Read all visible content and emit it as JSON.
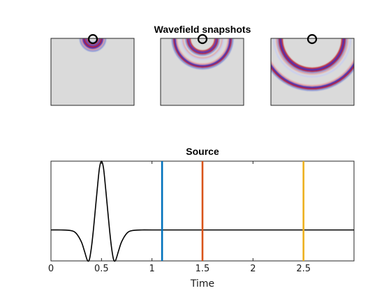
{
  "figure": {
    "top_title": "Wavefield snapshots"
  },
  "chart_data": [
    {
      "type": "heatmap",
      "title": "Wavefield snapshots",
      "panels": [
        {
          "time": 1.1,
          "source_marker": "circle",
          "color_low": "#2a35b8",
          "color_mid": "#dadada",
          "color_high": "#b3121a"
        },
        {
          "time": 1.5,
          "source_marker": "circle",
          "color_low": "#2a35b8",
          "color_mid": "#dadada",
          "color_high": "#b3121a"
        },
        {
          "time": 2.5,
          "source_marker": "circle",
          "color_low": "#2a35b8",
          "color_mid": "#dadada",
          "color_high": "#b3121a"
        }
      ]
    },
    {
      "type": "line",
      "title": "Source",
      "xlabel": "Time",
      "ylabel": "",
      "xlim": [
        0,
        3
      ],
      "ylim": [
        -0.45,
        1.0
      ],
      "xticks": [
        0,
        0.5,
        1,
        1.5,
        2,
        2.5
      ],
      "xtick_labels": [
        "0",
        "0.5",
        "1",
        "1.5",
        "2",
        "2.5"
      ],
      "series": [
        {
          "line_color": "#000000",
          "x": [
            0,
            0.1,
            0.2,
            0.25,
            0.3,
            0.33,
            0.36,
            0.38,
            0.4,
            0.42,
            0.44,
            0.46,
            0.48,
            0.5,
            0.52,
            0.54,
            0.56,
            0.58,
            0.6,
            0.62,
            0.64,
            0.67,
            0.7,
            0.75,
            0.8,
            0.9,
            1.0,
            1.5,
            2.0,
            2.5,
            3.0
          ],
          "y": [
            0,
            0,
            -0.01,
            -0.05,
            -0.17,
            -0.3,
            -0.44,
            -0.43,
            -0.26,
            0.0,
            0.31,
            0.62,
            0.9,
            1.0,
            0.9,
            0.62,
            0.31,
            0.0,
            -0.26,
            -0.43,
            -0.44,
            -0.3,
            -0.17,
            -0.05,
            -0.01,
            0,
            0,
            0,
            0,
            0,
            0
          ]
        }
      ],
      "markers": [
        {
          "x": 1.1,
          "color": "#0072bd"
        },
        {
          "x": 1.5,
          "color": "#d95319"
        },
        {
          "x": 2.5,
          "color": "#edb120"
        }
      ]
    }
  ]
}
